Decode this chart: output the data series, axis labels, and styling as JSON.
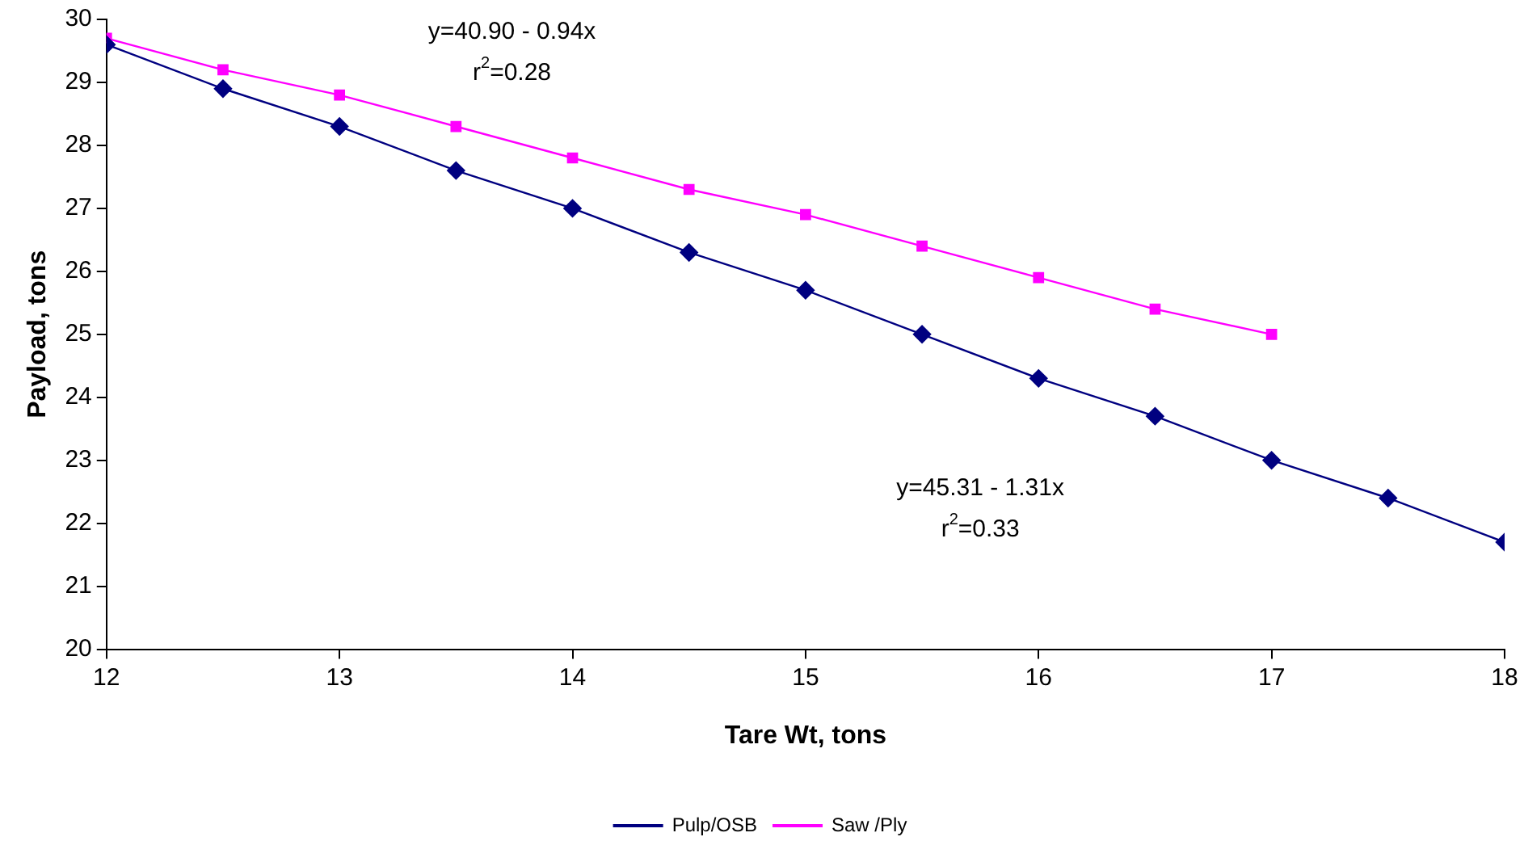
{
  "chart_data": {
    "type": "line",
    "xlabel": "Tare Wt, tons",
    "ylabel": "Payload, tons",
    "xlim": [
      12,
      18
    ],
    "xticks": [
      12,
      13,
      14,
      15,
      16,
      17,
      18
    ],
    "ylim": [
      20,
      30
    ],
    "yticks": [
      20,
      21,
      22,
      23,
      24,
      25,
      26,
      27,
      28,
      29,
      30
    ],
    "grid": false,
    "legend": "bottom",
    "series": [
      {
        "name": "Pulp/OSB",
        "color": "#000080",
        "marker": "diamond",
        "x": [
          12,
          12.5,
          13,
          13.5,
          14,
          14.5,
          15,
          15.5,
          16,
          16.5,
          17,
          17.5,
          18
        ],
        "values": [
          29.6,
          28.9,
          28.3,
          27.6,
          27.0,
          26.3,
          25.7,
          25.0,
          24.3,
          23.7,
          23.0,
          22.4,
          21.7
        ]
      },
      {
        "name": "Saw /Ply",
        "color": "#ff00ff",
        "marker": "square",
        "x": [
          12,
          12.5,
          13,
          13.5,
          14,
          14.5,
          15,
          15.5,
          16,
          16.5,
          17
        ],
        "values": [
          29.7,
          29.2,
          28.8,
          28.3,
          27.8,
          27.3,
          26.9,
          26.4,
          25.9,
          25.4,
          25.0
        ]
      }
    ],
    "annotations": [
      "y=40.90 - 0.94x",
      "r$^{2}$=0.28",
      "y=45.31 - 1.31x",
      "r$^{2}$=0.33"
    ]
  }
}
